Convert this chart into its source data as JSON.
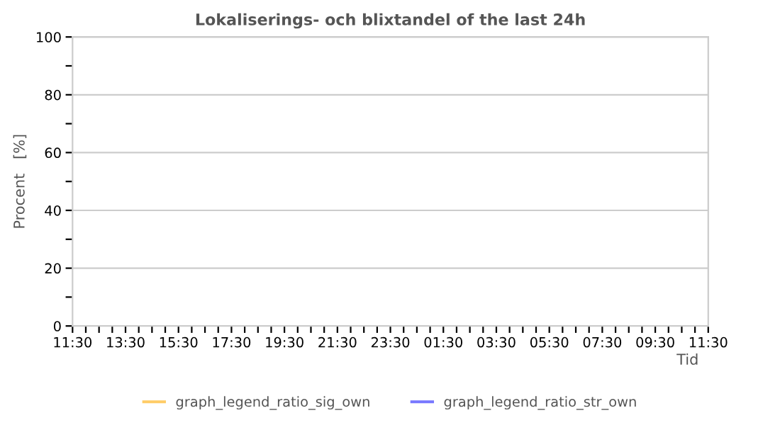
{
  "chart_data": {
    "type": "line",
    "title": "Lokaliserings- och blixtandel of the last 24h",
    "xlabel": "Tid",
    "ylabel": "Procent   [%]",
    "categories": [
      "11:30",
      null,
      null,
      null,
      "13:30",
      null,
      null,
      null,
      "15:30",
      null,
      null,
      null,
      "17:30",
      null,
      null,
      null,
      "19:30",
      null,
      null,
      null,
      "21:30",
      null,
      null,
      null,
      "23:30",
      null,
      null,
      null,
      "01:30",
      null,
      null,
      null,
      "03:30",
      null,
      null,
      null,
      "05:30",
      null,
      null,
      null,
      "07:30",
      null,
      null,
      null,
      "09:30",
      null,
      null,
      null,
      "11:30"
    ],
    "series": [
      {
        "name": "graph_legend_ratio_sig_own",
        "color": "#ffcc66",
        "values": [
          null,
          null,
          null,
          null,
          null,
          null,
          null,
          null,
          null,
          null,
          null,
          null,
          null,
          null,
          null,
          null,
          null,
          null,
          null,
          null,
          null,
          null,
          null,
          null,
          null,
          null,
          null,
          null,
          null,
          null,
          null,
          null,
          null,
          null,
          null,
          null,
          null,
          null,
          null,
          null,
          null,
          null,
          null,
          null,
          null,
          null,
          null,
          null,
          null
        ]
      },
      {
        "name": "graph_legend_ratio_str_own",
        "color": "#7777ff",
        "values": [
          null,
          null,
          null,
          null,
          null,
          null,
          null,
          null,
          null,
          null,
          null,
          null,
          null,
          null,
          null,
          null,
          null,
          null,
          null,
          null,
          null,
          null,
          null,
          null,
          null,
          null,
          null,
          null,
          null,
          null,
          null,
          null,
          null,
          null,
          null,
          null,
          null,
          null,
          null,
          null,
          null,
          null,
          null,
          null,
          null,
          null,
          null,
          null,
          null
        ]
      }
    ],
    "ylim": [
      0,
      100
    ],
    "yticks": [
      0,
      {
        "value": 10,
        "label": null
      },
      20,
      {
        "value": 30,
        "label": null
      },
      40,
      {
        "value": 50,
        "label": null
      },
      60,
      {
        "value": 70,
        "label": null
      },
      80,
      {
        "value": 90,
        "label": null
      },
      100
    ],
    "grid": "y",
    "legend": "bottom"
  }
}
